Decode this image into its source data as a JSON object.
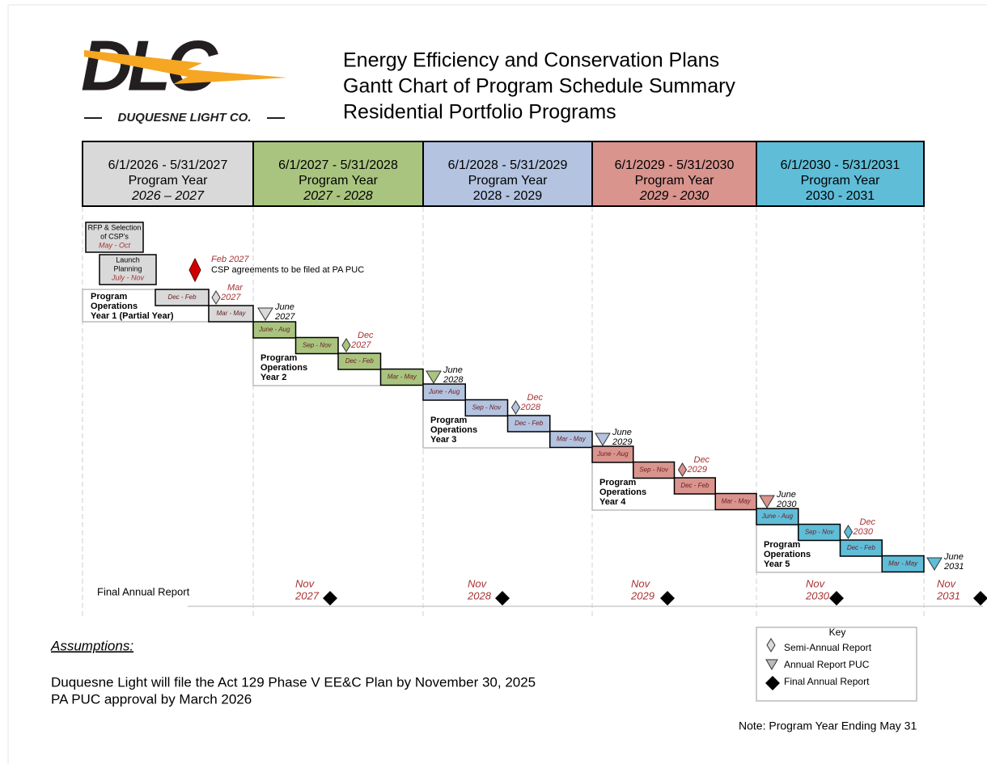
{
  "logo": {
    "mark": "DLC",
    "name": "DUQUESNE LIGHT CO."
  },
  "title": [
    "Energy Efficiency and Conservation Plans",
    "Gantt Chart of Program Schedule Summary",
    "Residential Portfolio Programs"
  ],
  "program_years": [
    {
      "dates": "6/1/2026 - 5/31/2027",
      "label": "Program Year",
      "years": "2026 – 2027"
    },
    {
      "dates": "6/1/2027 - 5/31/2028",
      "label": "Program Year",
      "years": "2027 - 2028"
    },
    {
      "dates": "6/1/2028 - 5/31/2029",
      "label": "Program Year",
      "years": "2028 - 2029"
    },
    {
      "dates": "6/1/2029 - 5/31/2030",
      "label": "Program Year",
      "years": "2029 - 2030"
    },
    {
      "dates": "6/1/2030 - 5/31/2031",
      "label": "Program Year",
      "years": "2030 - 2031"
    }
  ],
  "pre_tasks": [
    {
      "label": [
        "RFP & Selection",
        "of CSP's"
      ],
      "period": "May - Oct"
    },
    {
      "label": [
        "Launch",
        "Planning"
      ],
      "period": "July -  Nov"
    }
  ],
  "csp_milestone": {
    "date": "Feb 2027",
    "text": "CSP agreements to be filed at PA PUC"
  },
  "operations": [
    {
      "label": [
        "Program",
        "Operations",
        "Year 1 (Partial Year)"
      ],
      "bars": [
        "Dec - Feb",
        "Mar - May"
      ],
      "semi_annual": [
        "Mar",
        "2027"
      ],
      "annual": [
        "June",
        "2027"
      ]
    },
    {
      "label": [
        "Program",
        "Operations",
        "Year 2"
      ],
      "bars": [
        "June - Aug",
        "Sep - Nov",
        "Dec - Feb",
        "Mar - May"
      ],
      "semi_annual": [
        "Dec",
        "2027"
      ],
      "annual": [
        "June",
        "2028"
      ]
    },
    {
      "label": [
        "Program",
        "Operations",
        "Year 3"
      ],
      "bars": [
        "June - Aug",
        "Sep - Nov",
        "Dec - Feb",
        "Mar - May"
      ],
      "semi_annual": [
        "Dec",
        "2028"
      ],
      "annual": [
        "June",
        "2029"
      ]
    },
    {
      "label": [
        "Program",
        "Operations",
        "Year 4"
      ],
      "bars": [
        "June - Aug",
        "Sep - Nov",
        "Dec - Feb",
        "Mar - May"
      ],
      "semi_annual": [
        "Dec",
        "2029"
      ],
      "annual": [
        "June",
        "2030"
      ]
    },
    {
      "label": [
        "Program",
        "Operations",
        "Year 5"
      ],
      "bars": [
        "June - Aug",
        "Sep - Nov",
        "Dec - Feb",
        "Mar - May"
      ],
      "semi_annual": [
        "Dec",
        "2030"
      ],
      "annual": [
        "June",
        "2031"
      ]
    }
  ],
  "final_report": {
    "label": "Final Annual Report",
    "milestones": [
      [
        "Nov",
        "2027"
      ],
      [
        "Nov",
        "2028"
      ],
      [
        "Nov",
        "2029"
      ],
      [
        "Nov",
        "2030"
      ],
      [
        "Nov",
        "2031"
      ]
    ]
  },
  "assumptions": {
    "title": "Assumptions:",
    "lines": [
      "Duquesne Light will file the Act 129 Phase V EE&C Plan by November 30, 2025",
      "PA PUC approval by March 2026"
    ]
  },
  "key": {
    "title": "Key",
    "entries": [
      "Semi-Annual Report",
      "Annual Report PUC",
      "Final Annual Report"
    ]
  },
  "note": "Note: Program Year Ending May 31"
}
